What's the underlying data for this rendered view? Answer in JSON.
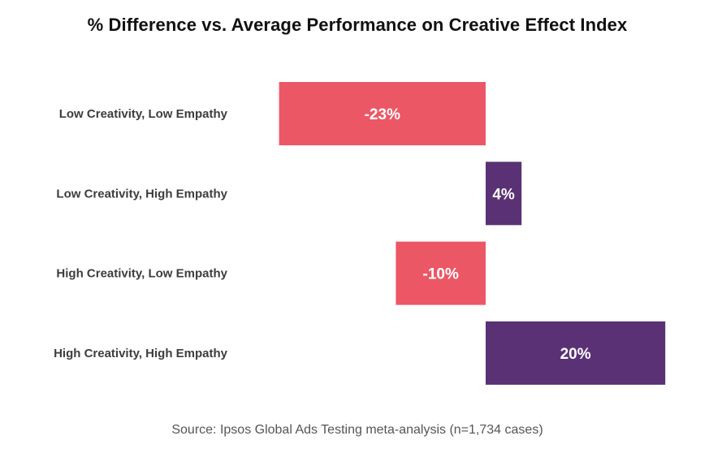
{
  "chart_data": {
    "type": "bar",
    "orientation": "horizontal",
    "title": "% Difference vs. Average Performance on Creative Effect Index",
    "categories": [
      "Low Creativity, Low Empathy",
      "Low Creativity, High Empathy",
      "High Creativity, Low Empathy",
      "High Creativity, High Empathy"
    ],
    "values": [
      -23,
      4,
      -10,
      20
    ],
    "value_labels": [
      "-23%",
      "4%",
      "-10%",
      "20%"
    ],
    "xlim": [
      -23,
      20
    ],
    "grid": false,
    "legend": "none",
    "colors": {
      "negative": "#EC5766",
      "positive": "#5A3175"
    }
  },
  "footer": {
    "source": "Source: Ipsos Global Ads Testing meta-analysis (n=1,734 cases)"
  }
}
